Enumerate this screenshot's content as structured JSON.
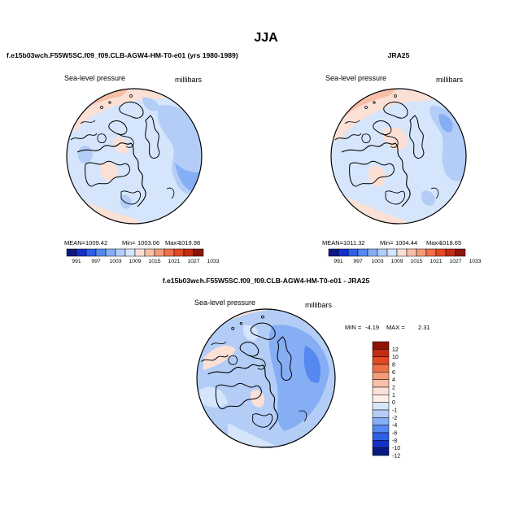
{
  "figure": {
    "season_title": "JJA"
  },
  "panels": {
    "model": {
      "title": "f.e15b03wch.F55W5SC.f09_f09.CLB-AGW4-HM-T0-e01 (yrs 1980-1989)",
      "variable": "Sea-level pressure",
      "units": "millibars",
      "stats": {
        "mean_label": "MEAN=",
        "mean": "1009.42",
        "min_label": "Min=",
        "min": "1003.06",
        "max_label": "Max=",
        "max": "1019.98"
      }
    },
    "obs": {
      "title": "JRA25",
      "variable": "Sea-level pressure",
      "units": "millibars",
      "stats": {
        "mean_label": "MEAN=",
        "mean": "1011.32",
        "min_label": "Min=",
        "min": "1004.44",
        "max_label": "Max=",
        "max": "1018.65"
      }
    },
    "diff": {
      "title": "f.e15b03wch.F55W5SC.f09_f09.CLB-AGW4-HM-T0-e01 - JRA25",
      "variable": "Sea-level pressure",
      "units": "millibars",
      "stats": {
        "min_label": "MIN =",
        "min": "-4.19",
        "max_label": "MAX =",
        "max": "2.31"
      }
    }
  },
  "colorbars": {
    "absolute": {
      "tick_labels": [
        "991",
        "997",
        "1003",
        "1009",
        "1015",
        "1021",
        "1027",
        "1033"
      ],
      "colors": [
        "#0a1a80",
        "#1530c8",
        "#2f5ee8",
        "#5588f0",
        "#86aef5",
        "#b3cdf7",
        "#d5e5fb",
        "#fbe0d6",
        "#f7bfa8",
        "#f39a78",
        "#ee7049",
        "#e04a23",
        "#c22c13",
        "#8e1408"
      ]
    },
    "difference": {
      "levels": [
        "12",
        "10",
        "8",
        "6",
        "4",
        "2",
        "1",
        "0",
        "-1",
        "-2",
        "-4",
        "-6",
        "-8",
        "-10",
        "-12"
      ],
      "colors": [
        "#8e1408",
        "#c22c13",
        "#e04a23",
        "#ee7049",
        "#f39a78",
        "#f7bfa8",
        "#fbe0d6",
        "#fdf0ea",
        "#d5e5fb",
        "#b3cdf7",
        "#86aef5",
        "#5588f0",
        "#2f5ee8",
        "#1530c8",
        "#0a1a80"
      ]
    }
  }
}
